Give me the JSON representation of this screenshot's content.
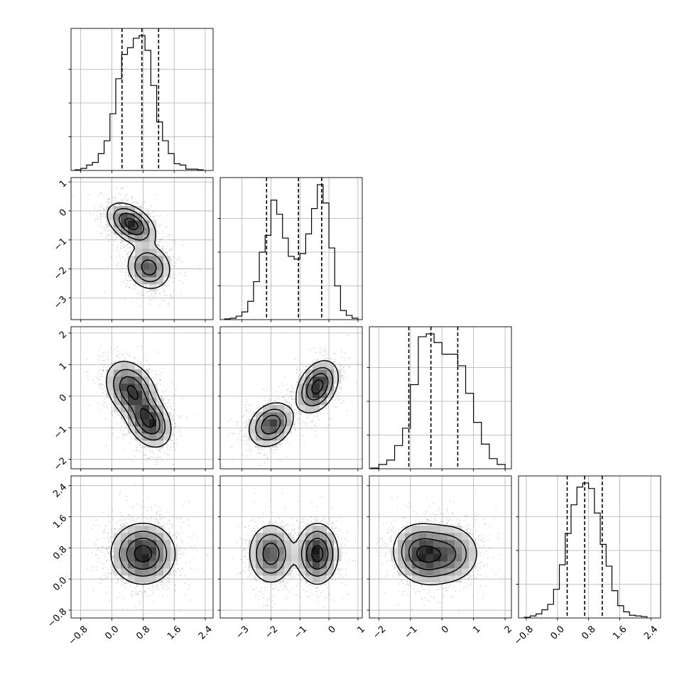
{
  "chart_data": {
    "type": "corner",
    "parameters": 4,
    "grid": true,
    "axes": [
      {
        "index": 0,
        "range": [
          -1.05,
          2.6
        ],
        "ticks": [
          -0.8,
          0.0,
          0.8,
          1.6,
          2.4
        ],
        "tick_labels": [
          "−0.8",
          "0.0",
          "0.8",
          "1.6",
          "2.4"
        ],
        "quantiles": [
          0.26,
          0.77,
          1.2
        ],
        "hist": {
          "bins": [
            -0.95,
            -0.8,
            -0.65,
            -0.5,
            -0.35,
            -0.2,
            -0.05,
            0.1,
            0.25,
            0.4,
            0.55,
            0.7,
            0.85,
            1.0,
            1.15,
            1.3,
            1.45,
            1.6,
            1.75,
            1.9,
            2.05,
            2.2,
            2.35
          ],
          "heights": [
            0.005,
            0.015,
            0.04,
            0.06,
            0.125,
            0.22,
            0.42,
            0.68,
            0.86,
            0.91,
            0.98,
            1.0,
            0.89,
            0.63,
            0.36,
            0.22,
            0.125,
            0.05,
            0.04,
            0.01,
            0.01,
            0.005
          ]
        },
        "modes": [
          [
            0.55,
            -0.45
          ],
          [
            0.95,
            -1.9
          ]
        ]
      },
      {
        "index": 1,
        "range": [
          -3.75,
          1.15
        ],
        "ticks": [
          -3,
          -2,
          -1,
          0,
          1
        ],
        "tick_labels": [
          "−3",
          "−2",
          "−1",
          "0",
          "1"
        ],
        "quantiles": [
          -2.15,
          -1.05,
          -0.25
        ],
        "hist": {
          "bins": [
            -3.6,
            -3.4,
            -3.2,
            -3.0,
            -2.8,
            -2.6,
            -2.4,
            -2.2,
            -2.0,
            -1.8,
            -1.6,
            -1.4,
            -1.2,
            -1.0,
            -0.8,
            -0.6,
            -0.4,
            -0.2,
            0.0,
            0.2,
            0.4,
            0.6,
            0.8,
            1.0
          ],
          "heights": [
            0.005,
            0.01,
            0.025,
            0.055,
            0.13,
            0.27,
            0.48,
            0.6,
            0.85,
            0.75,
            0.58,
            0.45,
            0.43,
            0.47,
            0.61,
            0.79,
            0.96,
            0.83,
            0.51,
            0.24,
            0.065,
            0.03,
            0.01
          ]
        },
        "modes": [
          [
            -2.0,
            -0.85
          ],
          [
            -0.4,
            0.35
          ]
        ]
      },
      {
        "index": 2,
        "range": [
          -2.3,
          2.2
        ],
        "ticks": [
          -2,
          -1,
          0,
          1,
          2
        ],
        "tick_labels": [
          "−2",
          "−1",
          "0",
          "1",
          "2"
        ],
        "quantiles": [
          -1.05,
          -0.35,
          0.5
        ],
        "hist": {
          "bins": [
            -2.25,
            -2.0,
            -1.75,
            -1.5,
            -1.25,
            -1.0,
            -0.75,
            -0.5,
            -0.25,
            0.0,
            0.25,
            0.5,
            0.75,
            1.0,
            1.25,
            1.5,
            1.75,
            2.0
          ],
          "heights": [
            0.005,
            0.03,
            0.06,
            0.16,
            0.28,
            0.58,
            0.91,
            0.93,
            0.87,
            0.79,
            0.79,
            0.71,
            0.52,
            0.32,
            0.17,
            0.07,
            0.03
          ]
        },
        "modes": [
          [
            -0.65,
            0.6
          ],
          [
            0.2,
            0.55
          ]
        ]
      },
      {
        "index": 3,
        "range": [
          -1.0,
          2.65
        ],
        "ticks": [
          -0.8,
          0.0,
          0.8,
          1.6,
          2.4
        ],
        "tick_labels": [
          "−0.8",
          "0.0",
          "0.8",
          "1.6",
          "2.4"
        ],
        "quantiles": [
          0.25,
          0.7,
          1.15
        ],
        "hist": {
          "bins": [
            -0.85,
            -0.7,
            -0.55,
            -0.4,
            -0.25,
            -0.1,
            0.05,
            0.2,
            0.35,
            0.5,
            0.65,
            0.8,
            0.95,
            1.1,
            1.25,
            1.4,
            1.55,
            1.7,
            1.85,
            2.0,
            2.15,
            2.3
          ],
          "heights": [
            0.005,
            0.015,
            0.03,
            0.06,
            0.1,
            0.21,
            0.39,
            0.62,
            0.83,
            0.96,
            0.99,
            0.95,
            0.77,
            0.54,
            0.38,
            0.2,
            0.09,
            0.045,
            0.02,
            0.015,
            0.01
          ]
        },
        "modes": [
          [
            0.55,
            0.75
          ],
          [
            0.9,
            0.6
          ]
        ]
      }
    ],
    "pairs": [
      {
        "row": 1,
        "col": 0,
        "components": [
          {
            "w": 0.55,
            "m": [
              0.5,
              -0.45
            ],
            "s": [
              0.3,
              0.35
            ],
            "r": -0.45
          },
          {
            "w": 0.45,
            "m": [
              0.95,
              -1.95
            ],
            "s": [
              0.28,
              0.38
            ],
            "r": -0.1
          }
        ]
      },
      {
        "row": 2,
        "col": 0,
        "components": [
          {
            "w": 0.55,
            "m": [
              0.5,
              0.2
            ],
            "s": [
              0.32,
              0.45
            ],
            "r": -0.3
          },
          {
            "w": 0.45,
            "m": [
              0.95,
              -0.8
            ],
            "s": [
              0.28,
              0.4
            ],
            "r": -0.3
          }
        ]
      },
      {
        "row": 2,
        "col": 1,
        "components": [
          {
            "w": 0.55,
            "m": [
              -0.4,
              0.3
            ],
            "s": [
              0.35,
              0.4
            ],
            "r": 0.35
          },
          {
            "w": 0.45,
            "m": [
              -2.0,
              -0.9
            ],
            "s": [
              0.38,
              0.35
            ],
            "r": 0.25
          }
        ]
      },
      {
        "row": 3,
        "col": 0,
        "components": [
          {
            "w": 1.0,
            "m": [
              0.8,
              0.65
            ],
            "s": [
              0.4,
              0.38
            ],
            "r": 0.0
          }
        ]
      },
      {
        "row": 3,
        "col": 1,
        "components": [
          {
            "w": 0.55,
            "m": [
              -0.4,
              0.65
            ],
            "s": [
              0.35,
              0.38
            ],
            "r": 0.0
          },
          {
            "w": 0.45,
            "m": [
              -2.0,
              0.65
            ],
            "s": [
              0.38,
              0.38
            ],
            "r": 0.0
          }
        ]
      },
      {
        "row": 3,
        "col": 2,
        "components": [
          {
            "w": 0.55,
            "m": [
              -0.65,
              0.65
            ],
            "s": [
              0.45,
              0.38
            ],
            "r": -0.1
          },
          {
            "w": 0.45,
            "m": [
              0.2,
              0.65
            ],
            "s": [
              0.5,
              0.38
            ],
            "r": 0.0
          }
        ]
      }
    ],
    "colors": {
      "line": "#000000",
      "grid": "#b0b0b0",
      "points": "#7a7a7a"
    }
  }
}
